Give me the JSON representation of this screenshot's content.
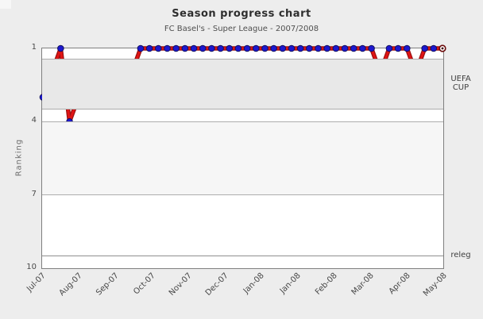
{
  "chart_data": {
    "type": "line",
    "title": "Season progress chart",
    "subtitle": "FC Basel's - Super League - 2007/2008",
    "ylabel": "Ranking",
    "x_labels": [
      "Jul-07",
      "Aug-07",
      "Sep-07",
      "Oct-07",
      "Nov-07",
      "Dec-07",
      "Jan-08",
      "Jan-08",
      "Feb-08",
      "Mar-08",
      "Apr-08",
      "May-08"
    ],
    "y_ticks": [
      1,
      4,
      7,
      10
    ],
    "ylim": [
      1,
      10
    ],
    "y_axis_inverted": true,
    "grid": "horizontal-only",
    "series": [
      {
        "name": "ranking",
        "values": [
          3,
          2,
          1,
          4,
          3,
          2,
          2,
          2,
          2,
          2,
          2,
          1,
          1,
          1,
          1,
          1,
          1,
          1,
          1,
          1,
          1,
          1,
          1,
          1,
          1,
          1,
          1,
          1,
          1,
          1,
          1,
          1,
          1,
          1,
          1,
          1,
          1,
          1,
          2,
          1,
          1,
          1,
          2,
          1,
          1,
          1
        ]
      }
    ],
    "zones": [
      {
        "kind": "band",
        "label": "UEFA CUP",
        "from": 1.45,
        "to": 3.5,
        "color": "#e8e8e8"
      },
      {
        "kind": "band",
        "label": "",
        "from": 4,
        "to": 7,
        "color": "#f6f6f6"
      },
      {
        "kind": "line",
        "label": "releg",
        "at": 9.5
      }
    ],
    "colors": {
      "line_outer": "#9b1010",
      "line_inner": "#e11414",
      "marker_fill": "#1d18cf",
      "marker_stroke": "#10105e",
      "last_marker_fill": "#ffffff",
      "last_marker_stroke": "#6b0a0a",
      "last_marker_dot": "#3a0606",
      "gridline": "#adadad",
      "zone_line": "#8f8f8f",
      "plot_border": "#7f7f7f",
      "plot_bg": "#ffffff",
      "page_bg": "#ededed"
    },
    "last_point_marker": "open-circle"
  }
}
